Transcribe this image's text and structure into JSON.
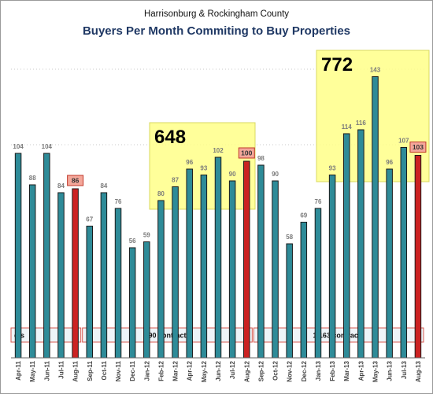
{
  "chart_data": {
    "type": "bar",
    "subtitle": "Harrisonburg & Rockingham County",
    "title": "Buyers Per Month Commiting to Buy Properties",
    "categories": [
      "Apr-11",
      "May-11",
      "Jun-11",
      "Jul-11",
      "Aug-11",
      "Sep-11",
      "Oct-11",
      "Nov-11",
      "Dec-11",
      "Jan-12",
      "Feb-12",
      "Mar-12",
      "Apr-12",
      "May-12",
      "Jun-12",
      "Jul-12",
      "Aug-12",
      "Sep-12",
      "Oct-12",
      "Nov-12",
      "Dec-12",
      "Jan-13",
      "Feb-13",
      "Mar-13",
      "Apr-13",
      "May-13",
      "Jun-13",
      "Jul-13",
      "Aug-13"
    ],
    "values": [
      104,
      88,
      104,
      84,
      86,
      67,
      84,
      76,
      56,
      59,
      80,
      87,
      96,
      93,
      102,
      90,
      100,
      98,
      90,
      58,
      69,
      76,
      93,
      114,
      116,
      143,
      96,
      107,
      103
    ],
    "highlighted": [
      "Aug-11",
      "Aug-12",
      "Aug-13"
    ],
    "ylim": [
      0,
      160
    ],
    "grid": false,
    "colors": {
      "bar": "#2e8b98",
      "bar_highlight": "#cc2222",
      "label_box": "#f4a79a",
      "yellow_box": "#ffff88",
      "title": "#1f3864"
    },
    "boxes": [
      {
        "label": "648",
        "from": "Feb-12",
        "to": "Aug-12"
      },
      {
        "label": "772",
        "from": "Feb-13",
        "to": "Aug-13"
      }
    ],
    "period_totals": [
      {
        "label": "...cts",
        "from": "Apr-11",
        "to": "Aug-11"
      },
      {
        "label": "990 contracts",
        "from": "Sep-11",
        "to": "Aug-12"
      },
      {
        "label": "1,163 contracts",
        "from": "Sep-12",
        "to": "Aug-13"
      }
    ]
  }
}
